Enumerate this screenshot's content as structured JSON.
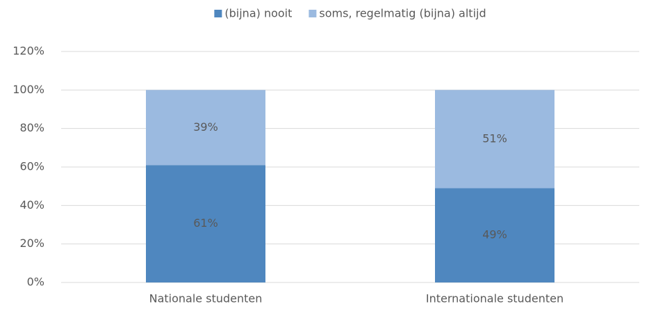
{
  "chart_data": {
    "type": "stacked_bar",
    "categories": [
      "Nationale studenten",
      "Internationale studenten"
    ],
    "series": [
      {
        "name": "(bijna) nooit",
        "color": "#4f87bf",
        "values": [
          61,
          49
        ],
        "value_labels": [
          "61%",
          "49%"
        ]
      },
      {
        "name": "soms, regelmatig (bijna) altijd",
        "color": "#9bbae0",
        "values": [
          39,
          51
        ],
        "value_labels": [
          "39%",
          "51%"
        ]
      }
    ],
    "ylim": [
      0,
      120
    ],
    "yticks": [
      {
        "value": 0,
        "label": "0%"
      },
      {
        "value": 20,
        "label": "20%"
      },
      {
        "value": 40,
        "label": "40%"
      },
      {
        "value": 60,
        "label": "60%"
      },
      {
        "value": 80,
        "label": "80%"
      },
      {
        "value": 100,
        "label": "100%"
      },
      {
        "value": 120,
        "label": "120%"
      }
    ],
    "grid": true,
    "legend": "top"
  }
}
